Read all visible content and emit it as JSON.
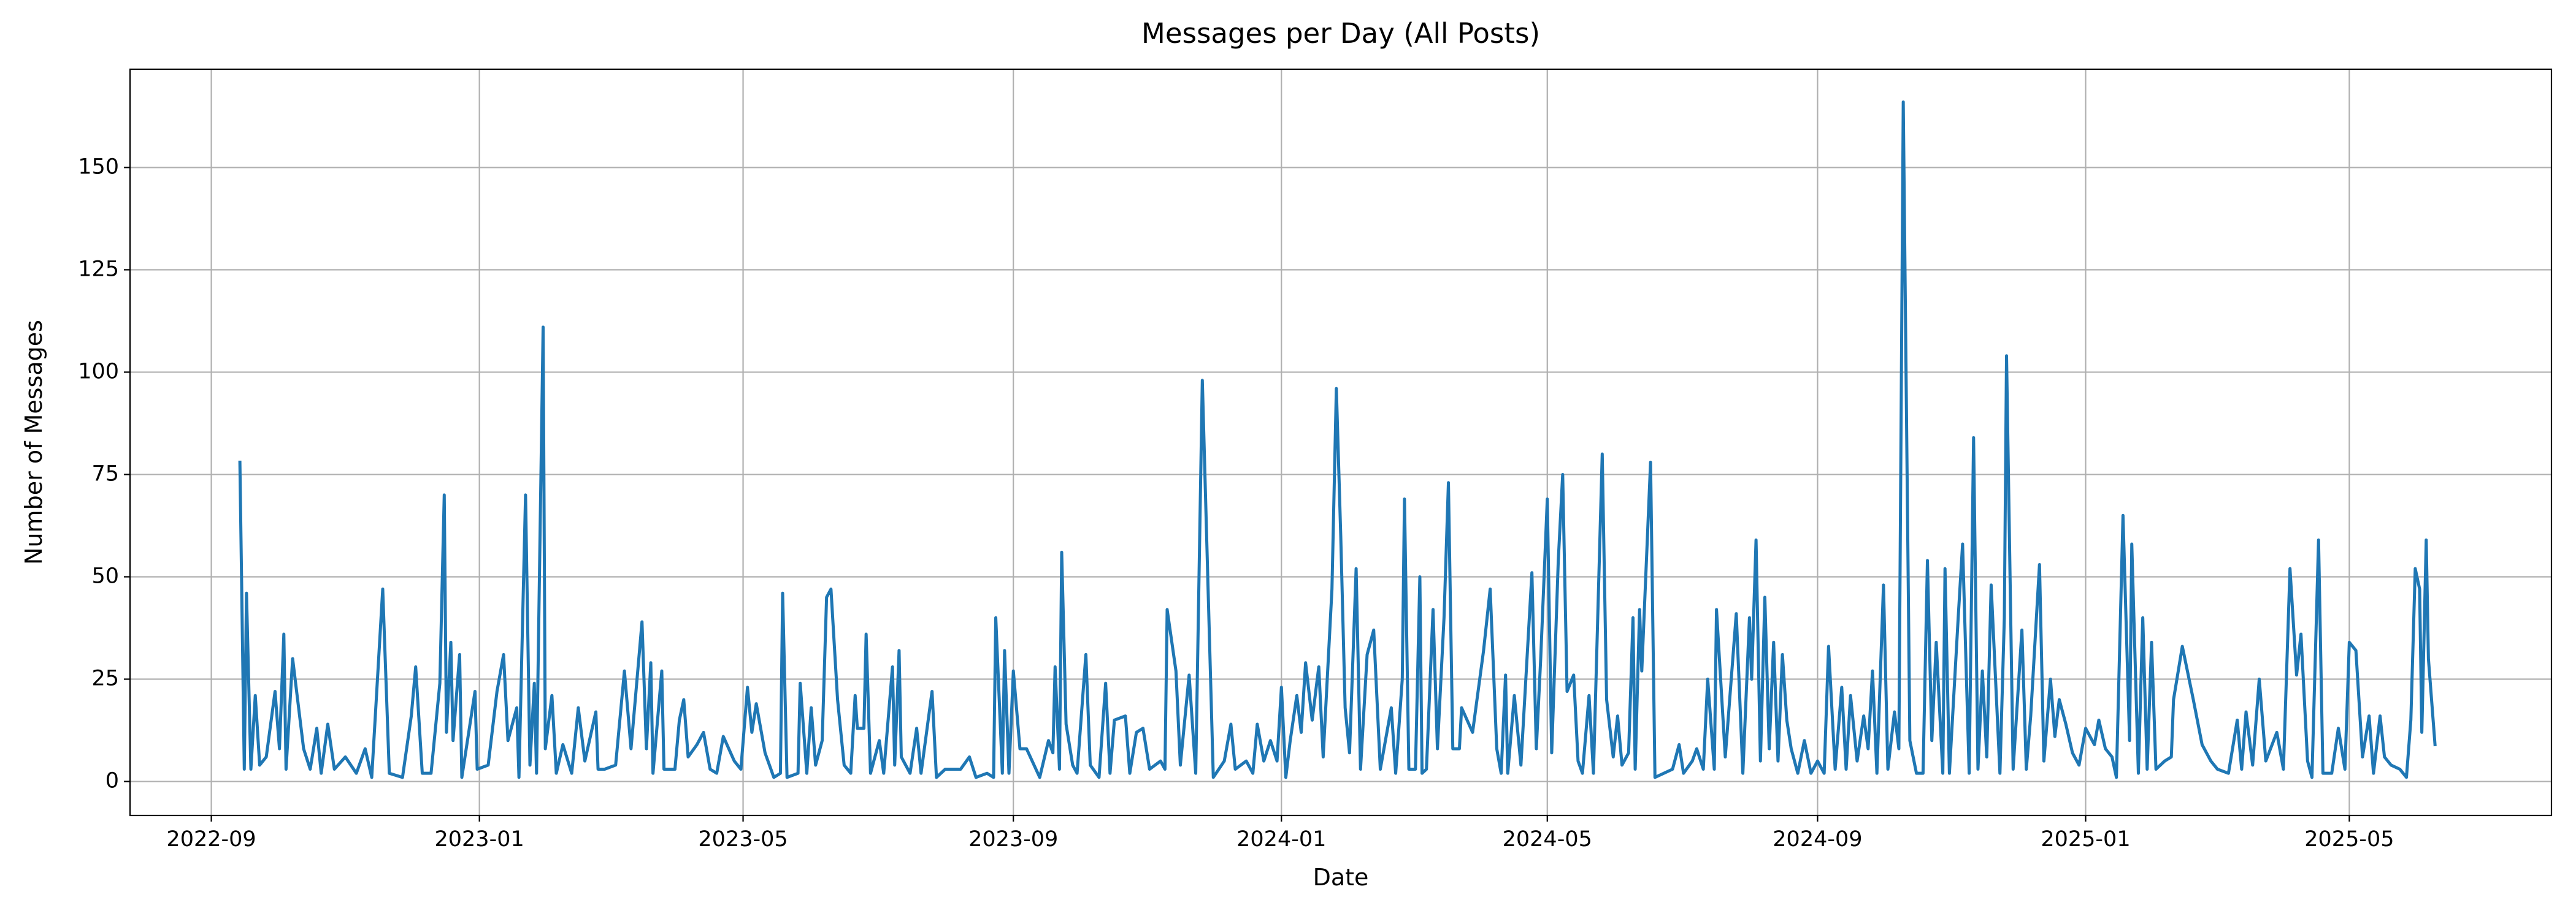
{
  "chart_data": {
    "type": "line",
    "title": "Messages per Day (All Posts)",
    "x_label": "Date",
    "y_label": "Number of Messages",
    "color": "#1f77b4",
    "grid": true,
    "x": [
      19249,
      19251,
      19252,
      19254,
      19256,
      19258,
      19261,
      19265,
      19267,
      19269,
      19270,
      19273,
      19278,
      19281,
      19284,
      19286,
      19289,
      19292,
      19297,
      19302,
      19306,
      19309,
      19314,
      19317,
      19323,
      19327,
      19329,
      19332,
      19336,
      19340,
      19342,
      19343,
      19345,
      19346,
      19349,
      19350,
      19356,
      19357,
      19362,
      19366,
      19369,
      19371,
      19375,
      19376,
      19379,
      19381,
      19383,
      19384,
      19387,
      19388,
      19391,
      19393,
      19396,
      19400,
      19403,
      19406,
      19411,
      19412,
      19415,
      19420,
      19424,
      19427,
      19432,
      19434,
      19436,
      19437,
      19441,
      19442,
      19447,
      19449,
      19451,
      19453,
      19457,
      19460,
      19463,
      19466,
      19469,
      19474,
      19477,
      19480,
      19482,
      19484,
      19488,
      19492,
      19495,
      19496,
      19498,
      19503,
      19504,
      19507,
      19509,
      19511,
      19514,
      19516,
      19518,
      19521,
      19524,
      19527,
      19529,
      19530,
      19533,
      19534,
      19536,
      19540,
      19542,
      19546,
      19547,
      19549,
      19550,
      19554,
      19557,
      19559,
      19564,
      19566,
      19570,
      19577,
      19581,
      19584,
      19589,
      19592,
      19593,
      19596,
      19597,
      19599,
      19601,
      19604,
      19607,
      19613,
      19617,
      19619,
      19620,
      19622,
      19623,
      19625,
      19628,
      19630,
      19634,
      19636,
      19640,
      19643,
      19645,
      19647,
      19652,
      19654,
      19657,
      19660,
      19663,
      19668,
      19670,
      19671,
      19675,
      19677,
      19681,
      19684,
      19687,
      19692,
      19697,
      19700,
      19702,
      19707,
      19710,
      19712,
      19715,
      19718,
      19721,
      19723,
      19725,
      19727,
      19730,
      19732,
      19734,
      19737,
      19740,
      19742,
      19746,
      19748,
      19750,
      19752,
      19754,
      19757,
      19759,
      19762,
      19765,
      19768,
      19773,
      19775,
      19778,
      19779,
      19781,
      19784,
      19786,
      19787,
      19789,
      19792,
      19794,
      19797,
      19799,
      19801,
      19804,
      19805,
      19810,
      19815,
      19818,
      19821,
      19823,
      19825,
      19826,
      19829,
      19832,
      19837,
      19839,
      19841,
      19844,
      19846,
      19849,
      19851,
      19853,
      19856,
      19858,
      19860,
      19863,
      19865,
      19869,
      19871,
      19874,
      19876,
      19878,
      19881,
      19883,
      19884,
      19886,
      19887,
      19891,
      19893,
      19901,
      19904,
      19906,
      19910,
      19912,
      19915,
      19917,
      19920,
      19921,
      19925,
      19930,
      19933,
      19936,
      19937,
      19939,
      19941,
      19943,
      19945,
      19947,
      19949,
      19951,
      19953,
      19955,
      19958,
      19961,
      19964,
      19967,
      19970,
      19972,
      19975,
      19978,
      19980,
      19982,
      19985,
      19988,
      19990,
      19992,
      19994,
      19997,
      19999,
      20002,
      20004,
      20006,
      20009,
      20012,
      20015,
      20017,
      20019,
      20021,
      20024,
      20025,
      20027,
      20031,
      20033,
      20036,
      20038,
      20040,
      20042,
      20044,
      20046,
      20050,
      20052,
      20053,
      20056,
      20060,
      20062,
      20064,
      20068,
      20070,
      20073,
      20075,
      20077,
      20080,
      20083,
      20086,
      20089,
      20093,
      20095,
      20098,
      20101,
      20103,
      20106,
      20109,
      20110,
      20113,
      20115,
      20117,
      20119,
      20121,
      20125,
      20128,
      20129,
      20133,
      20138,
      20142,
      20146,
      20149,
      20154,
      20158,
      20160,
      20162,
      20165,
      20168,
      20171,
      20176,
      20179,
      20182,
      20185,
      20187,
      20190,
      20192,
      20195,
      20197,
      20201,
      20204,
      20207,
      20209,
      20212,
      20215,
      20218,
      20220,
      20223,
      20225,
      20228,
      20232,
      20235,
      20237,
      20239,
      20241,
      20242,
      20244,
      20245,
      20247,
      20248
    ],
    "values": [
      78,
      3,
      46,
      3,
      21,
      4,
      6,
      22,
      8,
      36,
      3,
      30,
      8,
      3,
      13,
      2,
      14,
      3,
      6,
      2,
      8,
      1,
      47,
      2,
      1,
      16,
      28,
      2,
      2,
      24,
      70,
      12,
      34,
      10,
      31,
      1,
      22,
      3,
      4,
      22,
      31,
      10,
      18,
      1,
      70,
      4,
      24,
      2,
      111,
      8,
      21,
      2,
      9,
      2,
      18,
      5,
      17,
      3,
      3,
      4,
      27,
      8,
      39,
      8,
      29,
      2,
      27,
      3,
      3,
      15,
      20,
      6,
      9,
      12,
      3,
      2,
      11,
      5,
      3,
      23,
      12,
      19,
      7,
      1,
      2,
      46,
      1,
      2,
      24,
      2,
      18,
      4,
      10,
      45,
      47,
      20,
      4,
      2,
      21,
      13,
      13,
      36,
      2,
      10,
      2,
      28,
      4,
      32,
      6,
      2,
      13,
      2,
      22,
      1,
      3,
      3,
      6,
      1,
      2,
      1,
      40,
      2,
      32,
      2,
      27,
      8,
      8,
      1,
      10,
      7,
      28,
      3,
      56,
      14,
      4,
      2,
      31,
      4,
      1,
      24,
      2,
      15,
      16,
      2,
      12,
      13,
      3,
      5,
      3,
      42,
      27,
      4,
      26,
      2,
      98,
      1,
      5,
      14,
      3,
      5,
      2,
      14,
      5,
      10,
      5,
      23,
      1,
      10,
      21,
      12,
      29,
      15,
      28,
      6,
      47,
      96,
      60,
      18,
      7,
      52,
      3,
      31,
      37,
      3,
      18,
      2,
      25,
      69,
      3,
      3,
      50,
      2,
      3,
      42,
      8,
      40,
      73,
      8,
      8,
      18,
      12,
      32,
      47,
      8,
      2,
      26,
      2,
      21,
      4,
      51,
      8,
      30,
      69,
      7,
      54,
      75,
      22,
      26,
      5,
      2,
      21,
      2,
      80,
      20,
      6,
      16,
      4,
      7,
      40,
      3,
      42,
      27,
      78,
      1,
      3,
      9,
      2,
      5,
      8,
      3,
      25,
      3,
      42,
      6,
      41,
      2,
      40,
      25,
      59,
      5,
      45,
      8,
      34,
      5,
      31,
      15,
      8,
      2,
      10,
      2,
      5,
      2,
      33,
      3,
      23,
      3,
      21,
      5,
      16,
      8,
      27,
      2,
      48,
      3,
      17,
      8,
      166,
      10,
      2,
      2,
      54,
      10,
      34,
      2,
      52,
      2,
      40,
      58,
      2,
      84,
      3,
      27,
      6,
      48,
      2,
      40,
      104,
      3,
      37,
      3,
      16,
      53,
      5,
      25,
      11,
      20,
      14,
      7,
      4,
      13,
      9,
      15,
      8,
      6,
      1,
      65,
      10,
      58,
      2,
      40,
      3,
      34,
      3,
      5,
      6,
      20,
      33,
      20,
      9,
      5,
      3,
      2,
      15,
      3,
      17,
      4,
      25,
      5,
      12,
      3,
      52,
      26,
      36,
      5,
      1,
      59,
      2,
      2,
      13,
      3,
      34,
      32,
      6,
      16,
      2,
      16,
      6,
      4,
      3,
      1,
      15,
      52,
      47,
      12,
      59,
      30,
      16,
      9
    ],
    "xlim": [
      19199,
      20301
    ],
    "xticks": [
      {
        "value": 19236,
        "label": "2022-09"
      },
      {
        "value": 19358,
        "label": "2023-01"
      },
      {
        "value": 19478,
        "label": "2023-05"
      },
      {
        "value": 19601,
        "label": "2023-09"
      },
      {
        "value": 19723,
        "label": "2024-01"
      },
      {
        "value": 19844,
        "label": "2024-05"
      },
      {
        "value": 19967,
        "label": "2024-09"
      },
      {
        "value": 20089,
        "label": "2025-01"
      },
      {
        "value": 20209,
        "label": "2025-05"
      }
    ],
    "ylim": [
      -8.3,
      174
    ],
    "yticks": [
      0,
      25,
      50,
      75,
      100,
      125,
      150
    ]
  }
}
